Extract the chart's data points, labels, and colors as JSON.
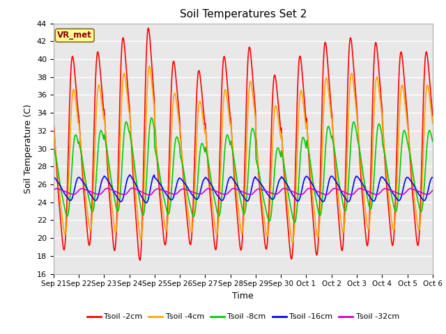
{
  "title": "Soil Temperatures Set 2",
  "xlabel": "Time",
  "ylabel": "Soil Temperature (C)",
  "ylim": [
    16,
    44
  ],
  "yticks": [
    16,
    18,
    20,
    22,
    24,
    26,
    28,
    30,
    32,
    34,
    36,
    38,
    40,
    42,
    44
  ],
  "xtick_labels": [
    "Sep 21",
    "Sep 22",
    "Sep 23",
    "Sep 24",
    "Sep 25",
    "Sep 26",
    "Sep 27",
    "Sep 28",
    "Sep 29",
    "Sep 30",
    "Oct 1",
    "Oct 2",
    "Oct 3",
    "Oct 4",
    "Oct 5",
    "Oct 6"
  ],
  "annotation_text": "VR_met",
  "annotation_color": "#8B0000",
  "annotation_bg": "#FFFF99",
  "lines": [
    {
      "label": "Tsoil -2cm",
      "color": "#FF0000",
      "lw": 1.2
    },
    {
      "label": "Tsoil -4cm",
      "color": "#FFA500",
      "lw": 1.2
    },
    {
      "label": "Tsoil -8cm",
      "color": "#00CC00",
      "lw": 1.2
    },
    {
      "label": "Tsoil -16cm",
      "color": "#0000FF",
      "lw": 1.2
    },
    {
      "label": "Tsoil -32cm",
      "color": "#CC00CC",
      "lw": 1.2
    }
  ],
  "background_color": "#E8E8E8",
  "grid_color": "#FFFFFF",
  "fig_color": "#FFFFFF",
  "n_days": 15,
  "pts_per_day": 48
}
